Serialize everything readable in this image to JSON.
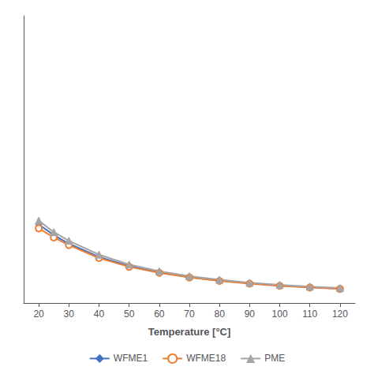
{
  "chart_data": {
    "type": "line",
    "xlabel": "Temperature [°C]",
    "x": [
      20,
      25,
      30,
      40,
      50,
      60,
      70,
      80,
      90,
      100,
      110,
      120
    ],
    "series": [
      {
        "name": "WFME1",
        "color": "#4472C4",
        "marker": "diamond",
        "values": [
          8.2,
          7.1,
          6.2,
          4.8,
          3.85,
          3.2,
          2.7,
          2.35,
          2.05,
          1.82,
          1.65,
          1.5
        ]
      },
      {
        "name": "WFME18",
        "color": "#ED7D31",
        "marker": "open-circle",
        "values": [
          7.8,
          6.85,
          6.05,
          4.7,
          3.78,
          3.15,
          2.67,
          2.31,
          2.02,
          1.79,
          1.62,
          1.47
        ]
      },
      {
        "name": "PME",
        "color": "#A5A5A5",
        "marker": "triangle",
        "values": [
          8.6,
          7.4,
          6.5,
          5.05,
          4.02,
          3.32,
          2.8,
          2.43,
          2.12,
          1.89,
          1.71,
          1.56
        ]
      }
    ],
    "xlim": [
      15,
      125
    ],
    "xticks": [
      20,
      30,
      40,
      50,
      60,
      70,
      80,
      90,
      100,
      110,
      120
    ],
    "ylim": [
      0,
      30
    ],
    "grid": false,
    "legend": "bottom",
    "tick_labels": "x"
  }
}
